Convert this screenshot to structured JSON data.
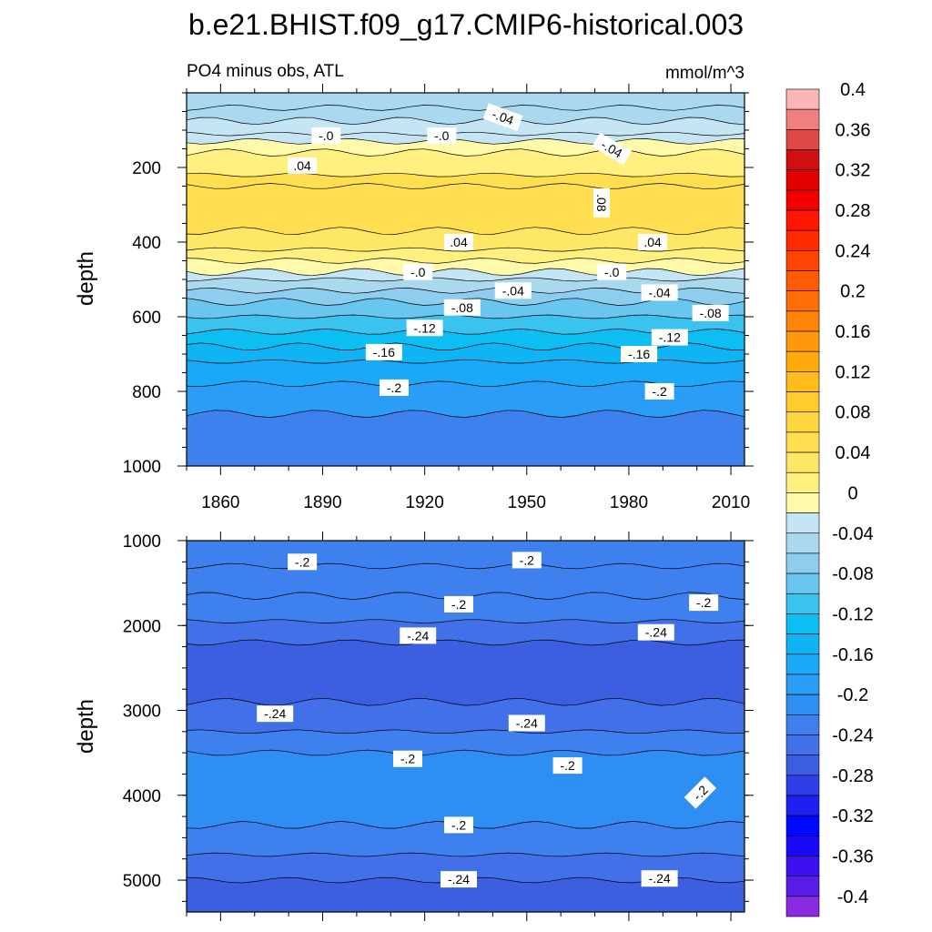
{
  "header": {
    "title": "b.e21.BHIST.f09_g17.CMIP6-historical.003",
    "left_label": "PO4 minus obs, ATL",
    "units": "mmol/m^3"
  },
  "colors": {
    "frame": "#000000",
    "contour_line": "#000000"
  },
  "chart_data": [
    {
      "type": "heatmap",
      "panel": "upper",
      "xlabel": "",
      "ylabel": "depth",
      "xlim": [
        1850,
        2014
      ],
      "ylim": [
        1000,
        0
      ],
      "x_ticks": [
        1860,
        1890,
        1920,
        1950,
        1980,
        2010
      ],
      "x_tick_labels": [
        "1860",
        "1890",
        "1920",
        "1950",
        "1980",
        "2010"
      ],
      "y_ticks": [
        200,
        400,
        600,
        800,
        1000
      ],
      "y_tick_labels": [
        "200",
        "400",
        "600",
        "800",
        "1000"
      ],
      "bands": [
        {
          "depth_top": 0,
          "depth_bottom": 40,
          "value": -0.03
        },
        {
          "depth_top": 40,
          "depth_bottom": 75,
          "value": -0.04
        },
        {
          "depth_top": 75,
          "depth_bottom": 110,
          "value": -0.02
        },
        {
          "depth_top": 110,
          "depth_bottom": 130,
          "value": -0.01
        },
        {
          "depth_top": 130,
          "depth_bottom": 160,
          "value": 0.01
        },
        {
          "depth_top": 160,
          "depth_bottom": 220,
          "value": 0.03
        },
        {
          "depth_top": 220,
          "depth_bottom": 250,
          "value": 0.06
        },
        {
          "depth_top": 250,
          "depth_bottom": 370,
          "value": 0.07
        },
        {
          "depth_top": 370,
          "depth_bottom": 420,
          "value": 0.05
        },
        {
          "depth_top": 420,
          "depth_bottom": 450,
          "value": 0.03
        },
        {
          "depth_top": 450,
          "depth_bottom": 480,
          "value": 0.01
        },
        {
          "depth_top": 480,
          "depth_bottom": 500,
          "value": -0.01
        },
        {
          "depth_top": 500,
          "depth_bottom": 530,
          "value": -0.03
        },
        {
          "depth_top": 530,
          "depth_bottom": 560,
          "value": -0.05
        },
        {
          "depth_top": 560,
          "depth_bottom": 600,
          "value": -0.07
        },
        {
          "depth_top": 600,
          "depth_bottom": 640,
          "value": -0.09
        },
        {
          "depth_top": 640,
          "depth_bottom": 680,
          "value": -0.11
        },
        {
          "depth_top": 680,
          "depth_bottom": 720,
          "value": -0.13
        },
        {
          "depth_top": 720,
          "depth_bottom": 780,
          "value": -0.15
        },
        {
          "depth_top": 780,
          "depth_bottom": 860,
          "value": -0.18
        },
        {
          "depth_top": 860,
          "depth_bottom": 1000,
          "value": -0.22
        }
      ],
      "contour_labels": [
        {
          "x": 1943,
          "y": 65,
          "text": "-.04",
          "rot": 20
        },
        {
          "x": 1891,
          "y": 115,
          "text": "-.0",
          "rot": 0
        },
        {
          "x": 1925,
          "y": 115,
          "text": "-.0",
          "rot": 0
        },
        {
          "x": 1975,
          "y": 150,
          "text": "-.04",
          "rot": 30
        },
        {
          "x": 1884,
          "y": 195,
          "text": ".04",
          "rot": 0
        },
        {
          "x": 1972,
          "y": 295,
          "text": ".08",
          "rot": 90
        },
        {
          "x": 1930,
          "y": 400,
          "text": ".04",
          "rot": 0
        },
        {
          "x": 1987,
          "y": 400,
          "text": ".04",
          "rot": 0
        },
        {
          "x": 1918,
          "y": 480,
          "text": "-.0",
          "rot": 0
        },
        {
          "x": 1975,
          "y": 480,
          "text": "-.0",
          "rot": 0
        },
        {
          "x": 1946,
          "y": 530,
          "text": "-.04",
          "rot": 0
        },
        {
          "x": 1989,
          "y": 535,
          "text": "-.04",
          "rot": 0
        },
        {
          "x": 1931,
          "y": 575,
          "text": "-.08",
          "rot": 0
        },
        {
          "x": 2004,
          "y": 590,
          "text": "-.08",
          "rot": 0
        },
        {
          "x": 1920,
          "y": 630,
          "text": "-.12",
          "rot": 0
        },
        {
          "x": 1992,
          "y": 655,
          "text": "-.12",
          "rot": 0
        },
        {
          "x": 1908,
          "y": 695,
          "text": "-.16",
          "rot": 0
        },
        {
          "x": 1983,
          "y": 700,
          "text": "-.16",
          "rot": 0
        },
        {
          "x": 1911,
          "y": 790,
          "text": "-.2",
          "rot": 0
        },
        {
          "x": 1989,
          "y": 800,
          "text": "-.2",
          "rot": 0
        }
      ]
    },
    {
      "type": "heatmap",
      "panel": "lower",
      "xlabel": "",
      "ylabel": "depth",
      "xlim": [
        1850,
        2014
      ],
      "ylim": [
        5375,
        1000
      ],
      "x_ticks": [
        1860,
        1890,
        1920,
        1950,
        1980,
        2010
      ],
      "y_ticks": [
        1000,
        2000,
        3000,
        4000,
        5000
      ],
      "y_tick_labels": [
        "1000",
        "2000",
        "3000",
        "4000",
        "5000"
      ],
      "bands": [
        {
          "depth_top": 1000,
          "depth_bottom": 1300,
          "value": -0.22
        },
        {
          "depth_top": 1300,
          "depth_bottom": 1650,
          "value": -0.21
        },
        {
          "depth_top": 1650,
          "depth_bottom": 1950,
          "value": -0.22
        },
        {
          "depth_top": 1950,
          "depth_bottom": 2200,
          "value": -0.23
        },
        {
          "depth_top": 2200,
          "depth_bottom": 2900,
          "value": -0.25
        },
        {
          "depth_top": 2900,
          "depth_bottom": 3250,
          "value": -0.23
        },
        {
          "depth_top": 3250,
          "depth_bottom": 3500,
          "value": -0.21
        },
        {
          "depth_top": 3500,
          "depth_bottom": 4350,
          "value": -0.19
        },
        {
          "depth_top": 4350,
          "depth_bottom": 4700,
          "value": -0.21
        },
        {
          "depth_top": 4700,
          "depth_bottom": 5000,
          "value": -0.23
        },
        {
          "depth_top": 5000,
          "depth_bottom": 5375,
          "value": -0.25
        }
      ],
      "contour_labels": [
        {
          "x": 1884,
          "y": 1250,
          "text": "-.2",
          "rot": 0
        },
        {
          "x": 1950,
          "y": 1230,
          "text": "-.2",
          "rot": 0
        },
        {
          "x": 1930,
          "y": 1750,
          "text": "-.2",
          "rot": 0
        },
        {
          "x": 2002,
          "y": 1730,
          "text": "-.2",
          "rot": 0
        },
        {
          "x": 1918,
          "y": 2120,
          "text": "-.24",
          "rot": 0
        },
        {
          "x": 1988,
          "y": 2080,
          "text": "-.24",
          "rot": 0
        },
        {
          "x": 1876,
          "y": 3040,
          "text": "-.24",
          "rot": 0
        },
        {
          "x": 1950,
          "y": 3150,
          "text": "-.24",
          "rot": 0
        },
        {
          "x": 1915,
          "y": 3570,
          "text": "-.2",
          "rot": 0
        },
        {
          "x": 1962,
          "y": 3650,
          "text": "-.2",
          "rot": 0
        },
        {
          "x": 2001,
          "y": 3970,
          "text": "-.2",
          "rot": -45
        },
        {
          "x": 1930,
          "y": 4350,
          "text": "-.2",
          "rot": 0
        },
        {
          "x": 1930,
          "y": 4990,
          "text": "-.24",
          "rot": 0
        },
        {
          "x": 1989,
          "y": 4980,
          "text": "-.24",
          "rot": 0
        }
      ]
    }
  ],
  "colorbar": {
    "levels": [
      -0.4,
      -0.38,
      -0.36,
      -0.34,
      -0.32,
      -0.3,
      -0.28,
      -0.26,
      -0.24,
      -0.22,
      -0.2,
      -0.18,
      -0.16,
      -0.14,
      -0.12,
      -0.1,
      -0.08,
      -0.06,
      -0.04,
      -0.02,
      0,
      0.02,
      0.04,
      0.06,
      0.08,
      0.1,
      0.12,
      0.14,
      0.16,
      0.18,
      0.2,
      0.22,
      0.24,
      0.26,
      0.28,
      0.3,
      0.32,
      0.34,
      0.36,
      0.38,
      0.4
    ],
    "colors": [
      "#8a2be2",
      "#5a1de8",
      "#3c10f0",
      "#1a08f8",
      "#0008ff",
      "#1f1ff0",
      "#2f3fe8",
      "#3c5ee0",
      "#4170e8",
      "#3f80ef",
      "#2f8ef2",
      "#2a9df6",
      "#19a9f6",
      "#10b3f4",
      "#0cbef2",
      "#3bc3ef",
      "#69c6ee",
      "#8fcdee",
      "#a9d8ef",
      "#c6e5f4",
      "#fffaaa",
      "#fff080",
      "#ffe766",
      "#ffdf50",
      "#ffd640",
      "#ffcc2e",
      "#ffbc1a",
      "#ffaa0c",
      "#ff980a",
      "#ff8508",
      "#ff6e06",
      "#ff5a04",
      "#ff4402",
      "#ff2a00",
      "#ff1500",
      "#f00000",
      "#e20000",
      "#d01010",
      "#e04848",
      "#f08080",
      "#fbb6b6"
    ],
    "tick_labels": [
      "0.4",
      "0.36",
      "0.32",
      "0.28",
      "0.24",
      "0.2",
      "0.16",
      "0.12",
      "0.08",
      "0.04",
      "0",
      "-0.04",
      "-0.08",
      "-0.12",
      "-0.16",
      "-0.2",
      "-0.24",
      "-0.28",
      "-0.32",
      "-0.36",
      "-0.4"
    ],
    "tick_values": [
      0.4,
      0.36,
      0.32,
      0.28,
      0.24,
      0.2,
      0.16,
      0.12,
      0.08,
      0.04,
      0,
      -0.04,
      -0.08,
      -0.12,
      -0.16,
      -0.2,
      -0.24,
      -0.28,
      -0.32,
      -0.36,
      -0.4
    ]
  }
}
